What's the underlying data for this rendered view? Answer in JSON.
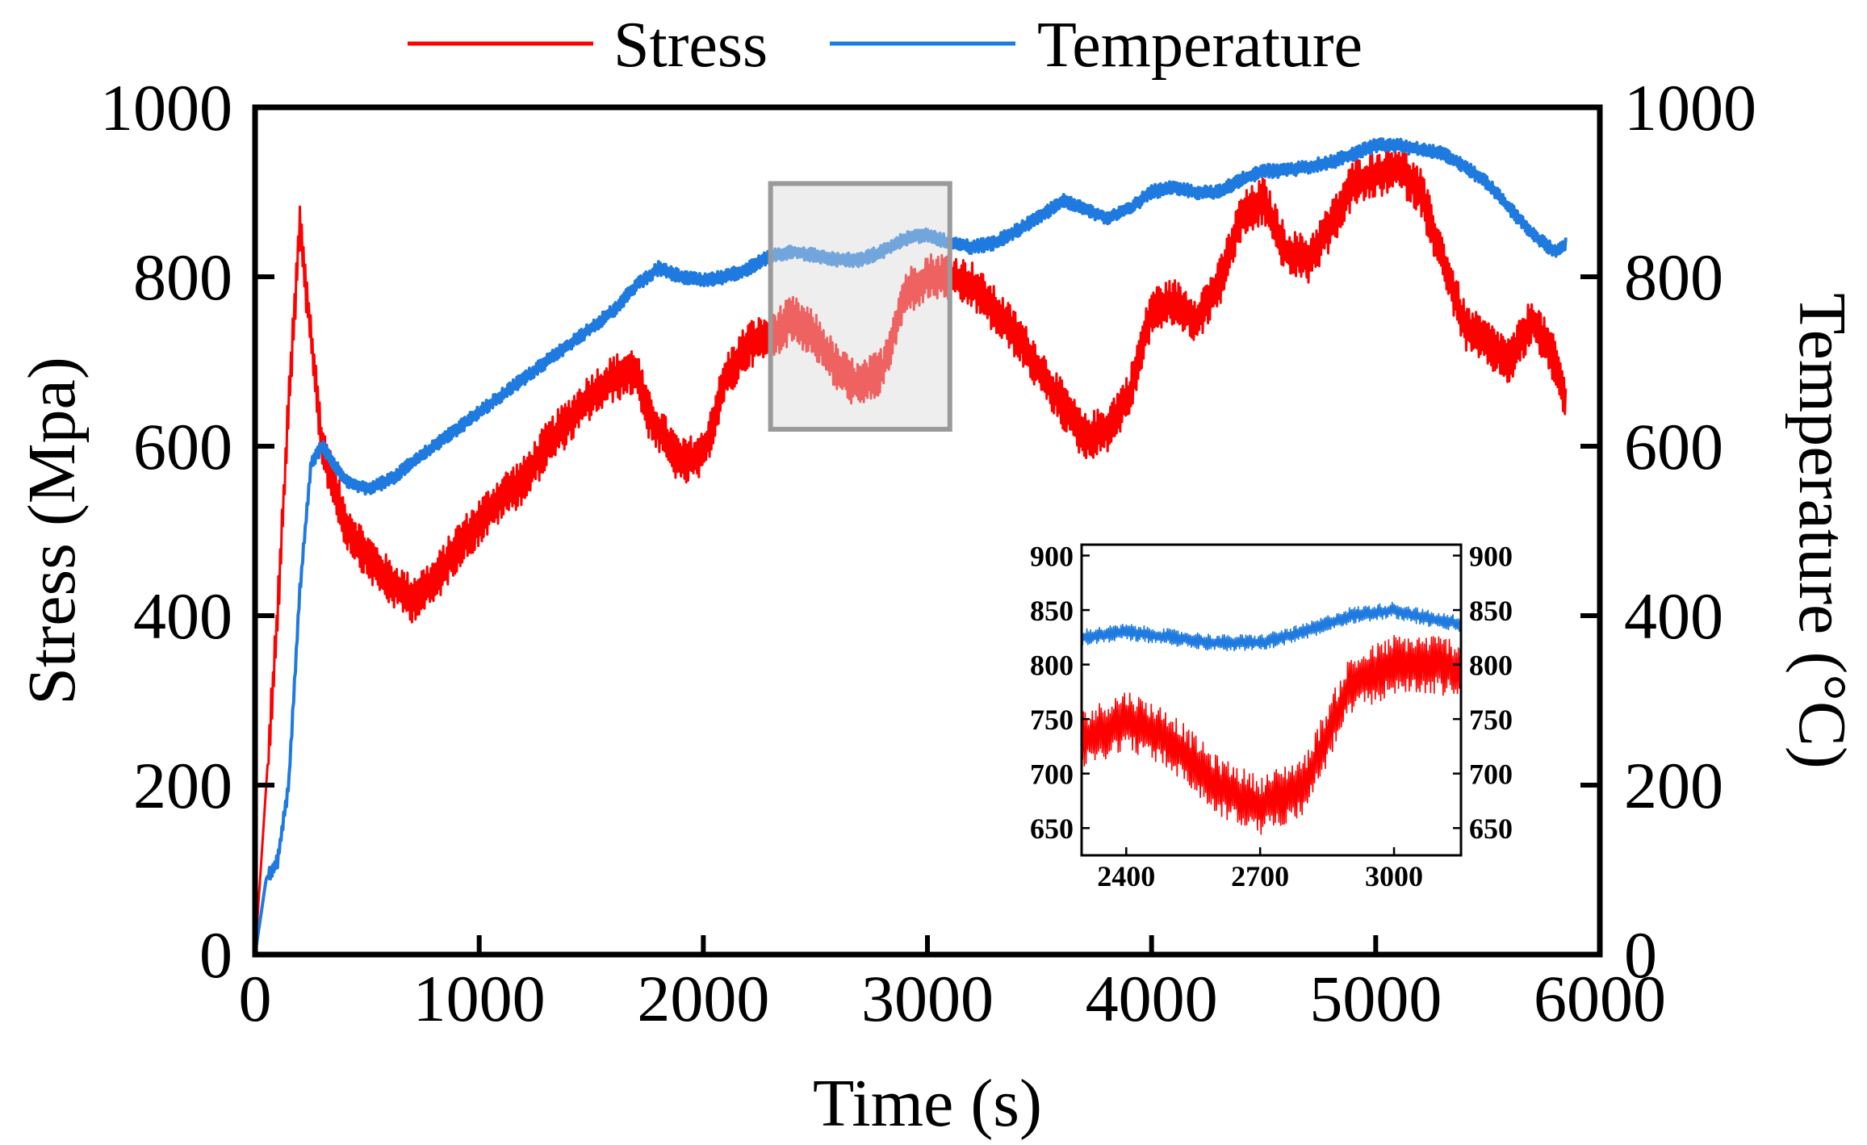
{
  "chart_data": {
    "type": "line",
    "title": "",
    "xlabel": "Time (s)",
    "ylabel": "Stress (Mpa)",
    "y2label": "Temperature (°C)",
    "xlim": [
      0,
      6000
    ],
    "ylim": [
      0,
      1000
    ],
    "y2lim": [
      0,
      1000
    ],
    "xticks": [
      "0",
      "1000",
      "2000",
      "3000",
      "4000",
      "5000",
      "6000"
    ],
    "yticks": [
      "0",
      "200",
      "400",
      "600",
      "800",
      "1000"
    ],
    "y2ticks": [
      "0",
      "200",
      "400",
      "600",
      "800",
      "1000"
    ],
    "legend_position": "top-center",
    "highlight_box": {
      "x_range": [
        2300,
        3100
      ],
      "y_range": [
        620,
        910
      ]
    },
    "series": [
      {
        "name": "Stress",
        "color": "#ff0000",
        "noise_amplitude": 28,
        "x": [
          0,
          50,
          100,
          150,
          200,
          260,
          300,
          400,
          500,
          600,
          700,
          800,
          900,
          1000,
          1100,
          1200,
          1300,
          1400,
          1500,
          1600,
          1700,
          1750,
          1800,
          1900,
          2000,
          2100,
          2200,
          2300,
          2400,
          2500,
          2600,
          2700,
          2800,
          2900,
          3000,
          3100,
          3200,
          3400,
          3600,
          3700,
          3800,
          3900,
          4000,
          4100,
          4200,
          4300,
          4400,
          4500,
          4600,
          4700,
          4800,
          4900,
          5000,
          5100,
          5200,
          5300,
          5400,
          5500,
          5600,
          5700,
          5800,
          5850
        ],
        "values": [
          0,
          200,
          400,
          650,
          860,
          700,
          600,
          510,
          470,
          440,
          420,
          440,
          480,
          510,
          540,
          560,
          600,
          630,
          660,
          680,
          690,
          640,
          620,
          580,
          590,
          680,
          720,
          730,
          750,
          730,
          690,
          670,
          690,
          780,
          800,
          800,
          790,
          730,
          650,
          610,
          620,
          660,
          760,
          770,
          750,
          790,
          870,
          890,
          830,
          820,
          860,
          910,
          920,
          930,
          900,
          820,
          740,
          720,
          700,
          750,
          700,
          650
        ]
      },
      {
        "name": "Temperature",
        "color": "#1f7ae0",
        "noise_amplitude": 8,
        "x": [
          0,
          50,
          100,
          150,
          200,
          250,
          300,
          350,
          400,
          500,
          600,
          700,
          800,
          900,
          1000,
          1100,
          1200,
          1300,
          1400,
          1500,
          1600,
          1700,
          1800,
          1900,
          2000,
          2100,
          2200,
          2300,
          2400,
          2500,
          2600,
          2700,
          2800,
          2900,
          3000,
          3100,
          3200,
          3300,
          3400,
          3500,
          3600,
          3700,
          3800,
          3900,
          4000,
          4100,
          4200,
          4300,
          4400,
          4500,
          4600,
          4700,
          4800,
          4900,
          5000,
          5100,
          5200,
          5300,
          5400,
          5500,
          5600,
          5700,
          5800,
          5850
        ],
        "values": [
          0,
          90,
          110,
          200,
          430,
          580,
          600,
          580,
          560,
          550,
          560,
          580,
          600,
          620,
          640,
          660,
          680,
          700,
          720,
          740,
          760,
          790,
          810,
          800,
          795,
          800,
          810,
          825,
          830,
          825,
          820,
          820,
          830,
          845,
          850,
          840,
          835,
          840,
          855,
          870,
          890,
          880,
          870,
          880,
          900,
          905,
          900,
          900,
          915,
          925,
          925,
          930,
          935,
          945,
          955,
          955,
          950,
          945,
          930,
          910,
          880,
          850,
          830,
          840
        ]
      }
    ],
    "inset": {
      "xlim": [
        2300,
        3150
      ],
      "ylim": [
        625,
        910
      ],
      "xticks": [
        "2400",
        "2700",
        "3000"
      ],
      "yticks": [
        "650",
        "700",
        "750",
        "800",
        "850",
        "900"
      ],
      "y2ticks": [
        "650",
        "700",
        "750",
        "800",
        "850",
        "900"
      ]
    }
  }
}
